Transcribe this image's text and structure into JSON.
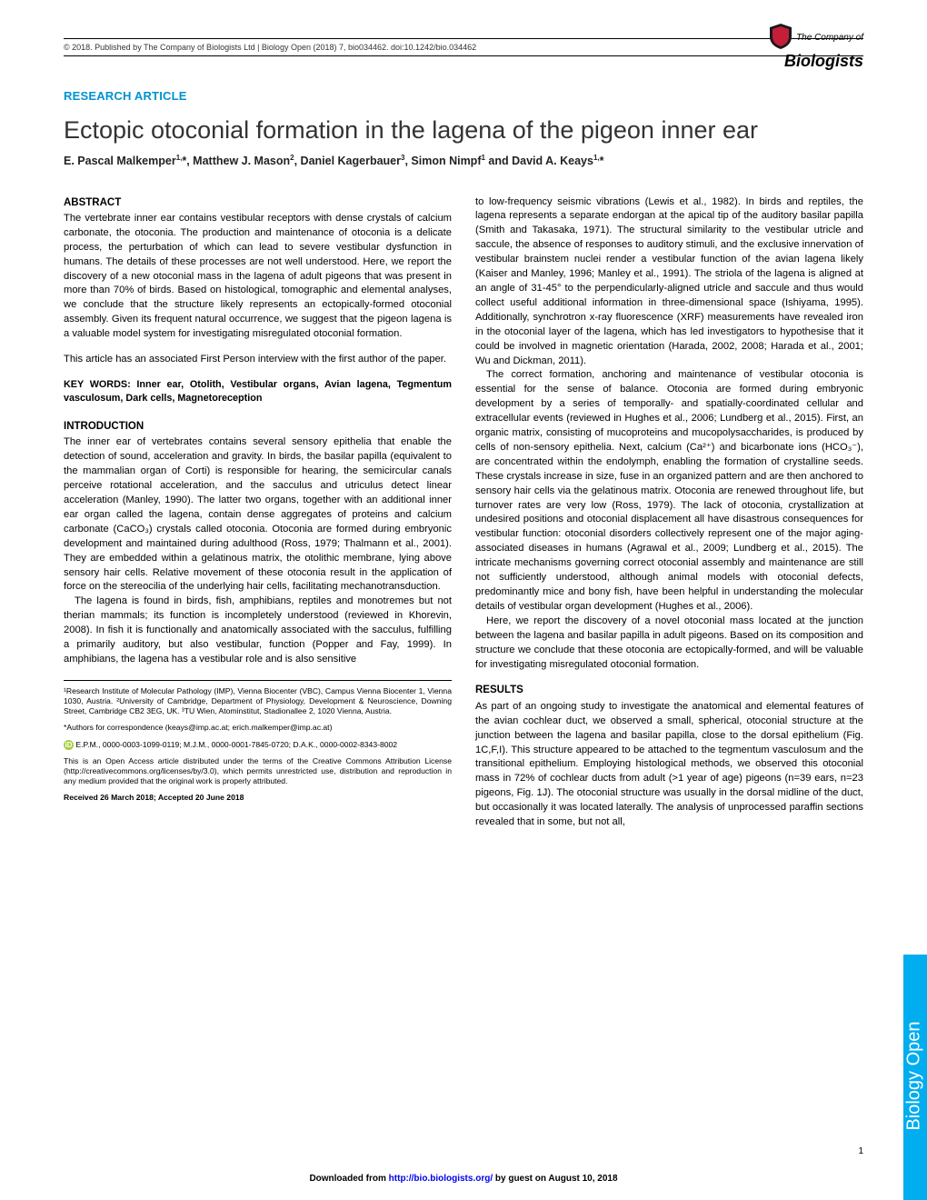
{
  "header": {
    "copyright": "© 2018. Published by The Company of Biologists Ltd | Biology Open (2018) 7, bio034462. doi:10.1242/bio.034462",
    "logo_top": "The Company of",
    "logo_bottom": "Biologists"
  },
  "article": {
    "type": "RESEARCH ARTICLE",
    "title": "Ectopic otoconial formation in the lagena of the pigeon inner ear",
    "authors_html": "E. Pascal Malkemper<sup>1,</sup>*, Matthew J. Mason<sup>2</sup>, Daniel Kagerbauer<sup>3</sup>, Simon Nimpf<sup>1</sup> and David A. Keays<sup>1,</sup>*"
  },
  "abstract": {
    "heading": "ABSTRACT",
    "text": "The vertebrate inner ear contains vestibular receptors with dense crystals of calcium carbonate, the otoconia. The production and maintenance of otoconia is a delicate process, the perturbation of which can lead to severe vestibular dysfunction in humans. The details of these processes are not well understood. Here, we report the discovery of a new otoconial mass in the lagena of adult pigeons that was present in more than 70% of birds. Based on histological, tomographic and elemental analyses, we conclude that the structure likely represents an ectopically-formed otoconial assembly. Given its frequent natural occurrence, we suggest that the pigeon lagena is a valuable model system for investigating misregulated otoconial formation.",
    "first_person": "This article has an associated First Person interview with the first author of the paper."
  },
  "keywords": {
    "label": "KEY WORDS:",
    "text": "Inner ear, Otolith, Vestibular organs, Avian lagena, Tegmentum vasculosum, Dark cells, Magnetoreception"
  },
  "intro": {
    "heading": "INTRODUCTION",
    "p1": "The inner ear of vertebrates contains several sensory epithelia that enable the detection of sound, acceleration and gravity. In birds, the basilar papilla (equivalent to the mammalian organ of Corti) is responsible for hearing, the semicircular canals perceive rotational acceleration, and the sacculus and utriculus detect linear acceleration (Manley, 1990). The latter two organs, together with an additional inner ear organ called the lagena, contain dense aggregates of proteins and calcium carbonate (CaCO₃) crystals called otoconia. Otoconia are formed during embryonic development and maintained during adulthood (Ross, 1979; Thalmann et al., 2001). They are embedded within a gelatinous matrix, the otolithic membrane, lying above sensory hair cells. Relative movement of these otoconia result in the application of force on the stereocilia of the underlying hair cells, facilitating mechanotransduction.",
    "p2": "The lagena is found in birds, fish, amphibians, reptiles and monotremes but not therian mammals; its function is incompletely understood (reviewed in Khorevin, 2008). In fish it is functionally and anatomically associated with the sacculus, fulfilling a primarily auditory, but also vestibular, function (Popper and Fay, 1999). In amphibians, the lagena has a vestibular role and is also sensitive"
  },
  "footnotes": {
    "affil": "¹Research Institute of Molecular Pathology (IMP), Vienna Biocenter (VBC), Campus Vienna Biocenter 1, Vienna 1030, Austria. ²University of Cambridge, Department of Physiology, Development & Neuroscience, Downing Street, Cambridge CB2 3EG, UK. ³TU Wien, Atominstitut, Stadionallee 2, 1020 Vienna, Austria.",
    "corr": "*Authors for correspondence (keays@imp.ac.at; erich.malkemper@imp.ac.at)",
    "orcid": "E.P.M., 0000-0003-1099-0119; M.J.M., 0000-0001-7845-0720; D.A.K., 0000-0002-8343-8002",
    "license": "This is an Open Access article distributed under the terms of the Creative Commons Attribution License (http://creativecommons.org/licenses/by/3.0), which permits unrestricted use, distribution and reproduction in any medium provided that the original work is properly attributed.",
    "received": "Received 26 March 2018; Accepted 20 June 2018"
  },
  "col2": {
    "p1": "to low-frequency seismic vibrations (Lewis et al., 1982). In birds and reptiles, the lagena represents a separate endorgan at the apical tip of the auditory basilar papilla (Smith and Takasaka, 1971). The structural similarity to the vestibular utricle and saccule, the absence of responses to auditory stimuli, and the exclusive innervation of vestibular brainstem nuclei render a vestibular function of the avian lagena likely (Kaiser and Manley, 1996; Manley et al., 1991). The striola of the lagena is aligned at an angle of 31-45° to the perpendicularly-aligned utricle and saccule and thus would collect useful additional information in three-dimensional space (Ishiyama, 1995). Additionally, synchrotron x-ray fluorescence (XRF) measurements have revealed iron in the otoconial layer of the lagena, which has led investigators to hypothesise that it could be involved in magnetic orientation (Harada, 2002, 2008; Harada et al., 2001; Wu and Dickman, 2011).",
    "p2": "The correct formation, anchoring and maintenance of vestibular otoconia is essential for the sense of balance. Otoconia are formed during embryonic development by a series of temporally- and spatially-coordinated cellular and extracellular events (reviewed in Hughes et al., 2006; Lundberg et al., 2015). First, an organic matrix, consisting of mucoproteins and mucopolysaccharides, is produced by cells of non-sensory epithelia. Next, calcium (Ca²⁺) and bicarbonate ions (HCO₃⁻), are concentrated within the endolymph, enabling the formation of crystalline seeds. These crystals increase in size, fuse in an organized pattern and are then anchored to sensory hair cells via the gelatinous matrix. Otoconia are renewed throughout life, but turnover rates are very low (Ross, 1979). The lack of otoconia, crystallization at undesired positions and otoconial displacement all have disastrous consequences for vestibular function: otoconial disorders collectively represent one of the major aging-associated diseases in humans (Agrawal et al., 2009; Lundberg et al., 2015). The intricate mechanisms governing correct otoconial assembly and maintenance are still not sufficiently understood, although animal models with otoconial defects, predominantly mice and bony fish, have been helpful in understanding the molecular details of vestibular organ development (Hughes et al., 2006).",
    "p3": "Here, we report the discovery of a novel otoconial mass located at the junction between the lagena and basilar papilla in adult pigeons. Based on its composition and structure we conclude that these otoconia are ectopically-formed, and will be valuable for investigating misregulated otoconial formation.",
    "results_heading": "RESULTS",
    "p4": "As part of an ongoing study to investigate the anatomical and elemental features of the avian cochlear duct, we observed a small, spherical, otoconial structure at the junction between the lagena and basilar papilla, close to the dorsal epithelium (Fig. 1C,F,I). This structure appeared to be attached to the tegmentum vasculosum and the transitional epithelium. Employing histological methods, we observed this otoconial mass in 72% of cochlear ducts from adult (>1 year of age) pigeons (n=39 ears, n=23 pigeons, Fig. 1J). The otoconial structure was usually in the dorsal midline of the duct, but occasionally it was located laterally. The analysis of unprocessed paraffin sections revealed that in some, but not all,"
  },
  "sidetab": "Biology Open",
  "download": {
    "pre": "Downloaded from ",
    "url": "http://bio.biologists.org/",
    "post": " by guest on August 10, 2018"
  },
  "pagenum": "1",
  "colors": {
    "accent": "#0092d0",
    "sidetab": "#00adee",
    "orcid": "#a6ce39"
  }
}
